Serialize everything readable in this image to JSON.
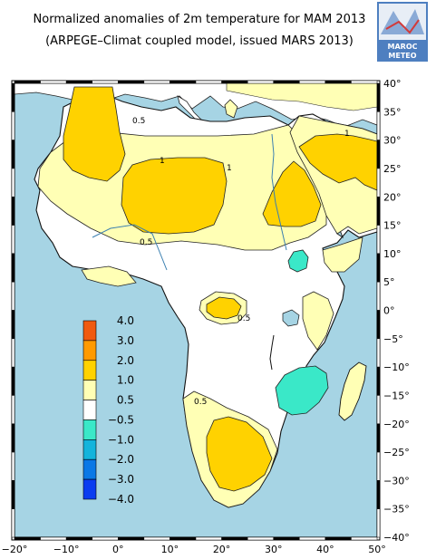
{
  "title": {
    "line1": "Normalized anomalies of 2m temperature for MAM 2013",
    "line2": "(ARPEGE–Climat coupled model, issued MARS 2013)"
  },
  "logo": {
    "line1": "MAROC",
    "line2": "METEO"
  },
  "map": {
    "lon_ticks": [
      "−20°",
      "−10°",
      "0°",
      "10°",
      "20°",
      "30°",
      "40°",
      "50°"
    ],
    "lat_ticks": [
      "40°",
      "35°",
      "30°",
      "25°",
      "20°",
      "15°",
      "10°",
      "5°",
      "0°",
      "−5°",
      "−10°",
      "−15°",
      "−20°",
      "−25°",
      "−30°",
      "−35°",
      "−40°"
    ],
    "contour_labels": [
      "0.5",
      "1",
      "1",
      "0.5",
      "0.5",
      "0.5",
      "1"
    ],
    "colors": {
      "sea": "#a6d4e4",
      "near_normal": "#ffffff",
      "warm_05_10": "#ffffb5",
      "warm_10_20": "#ffd200",
      "cold_05_10": "#3ae8c8"
    }
  },
  "legend": {
    "labels": [
      "4.0",
      "3.0",
      "2.0",
      "1.0",
      "0.5",
      "−0.5",
      "−1.0",
      "−2.0",
      "−3.0",
      "−4.0"
    ],
    "colors": [
      "#f05a0f",
      "#ff9a00",
      "#ffd200",
      "#ffffb5",
      "#ffffff",
      "#3ae8c8",
      "#14b4dc",
      "#0a78e6",
      "#0a3cf0"
    ]
  }
}
